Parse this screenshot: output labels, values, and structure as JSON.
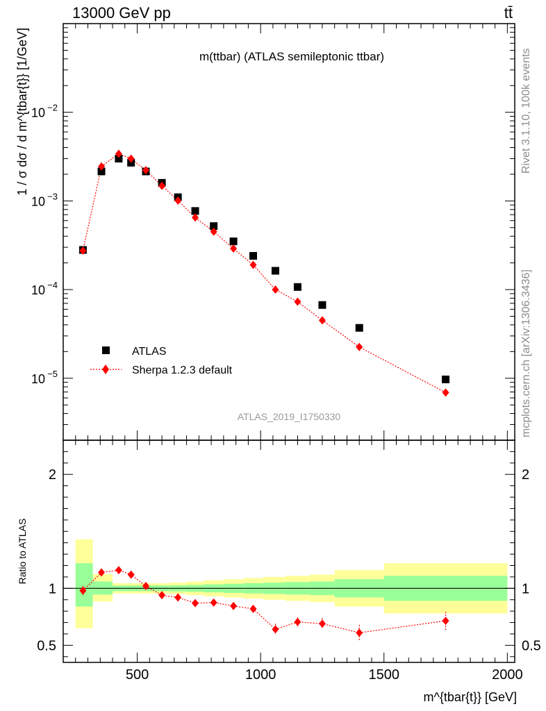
{
  "header": {
    "left": "13000 GeV pp",
    "right": "tt̄"
  },
  "side_labels": {
    "version": "Rivet 3.1.10,  100k events",
    "source": "mcplots.cern.ch [arXiv:1306.3436]"
  },
  "analysis_id": "ATLAS_2019_I1750330",
  "chart_data": [
    {
      "type": "scatter",
      "title": "m(ttbar) (ATLAS semileptonic ttbar)",
      "ylabel": "1 / σ dσ / d m^{tbar{t}} [1/GeV]",
      "yscale": "log",
      "ylim": [
        2e-06,
        0.1
      ],
      "xlim": [
        200,
        2030
      ],
      "x_ticks": [
        500,
        1000,
        1500,
        2000
      ],
      "y_ticks": [
        "10^-5",
        "10^-4",
        "10^-3",
        "10^-2"
      ],
      "legend_position": "bottom-left",
      "series": [
        {
          "name": "ATLAS",
          "color": "#000000",
          "marker": "square",
          "points": [
            {
              "x": 280,
              "y": 0.00028
            },
            {
              "x": 355,
              "y": 0.00215
            },
            {
              "x": 425,
              "y": 0.003
            },
            {
              "x": 475,
              "y": 0.0027
            },
            {
              "x": 535,
              "y": 0.00215
            },
            {
              "x": 600,
              "y": 0.0016
            },
            {
              "x": 665,
              "y": 0.0011
            },
            {
              "x": 735,
              "y": 0.00077
            },
            {
              "x": 810,
              "y": 0.00052
            },
            {
              "x": 890,
              "y": 0.00035
            },
            {
              "x": 970,
              "y": 0.00024
            },
            {
              "x": 1060,
              "y": 0.000163
            },
            {
              "x": 1150,
              "y": 0.000107
            },
            {
              "x": 1250,
              "y": 6.7e-05
            },
            {
              "x": 1400,
              "y": 3.7e-05
            },
            {
              "x": 1750,
              "y": 9.7e-06
            }
          ]
        },
        {
          "name": "Sherpa 1.2.3 default",
          "color": "#ff0000",
          "marker": "diamond",
          "line": "dotted",
          "points": [
            {
              "x": 280,
              "y": 0.000275
            },
            {
              "x": 355,
              "y": 0.00245
            },
            {
              "x": 425,
              "y": 0.0034
            },
            {
              "x": 475,
              "y": 0.003
            },
            {
              "x": 535,
              "y": 0.00222
            },
            {
              "x": 600,
              "y": 0.00148
            },
            {
              "x": 665,
              "y": 0.00101
            },
            {
              "x": 735,
              "y": 0.00065
            },
            {
              "x": 810,
              "y": 0.00045
            },
            {
              "x": 890,
              "y": 0.00029
            },
            {
              "x": 970,
              "y": 0.00019
            },
            {
              "x": 1060,
              "y": 0.0001
            },
            {
              "x": 1150,
              "y": 7.3e-05
            },
            {
              "x": 1250,
              "y": 4.5e-05
            },
            {
              "x": 1400,
              "y": 2.25e-05
            },
            {
              "x": 1750,
              "y": 6.9e-06
            }
          ]
        }
      ]
    },
    {
      "type": "scatter",
      "ylabel": "Ratio to ATLAS",
      "xlabel": "m^{tbar{t}} [GeV]",
      "ylim": [
        0.35,
        2.3
      ],
      "xlim": [
        200,
        2030
      ],
      "x_ticks": [
        500,
        1000,
        1500,
        2000
      ],
      "y_ticks": [
        0.5,
        1,
        2
      ],
      "reference_line": 1,
      "bands": [
        {
          "x0": 250,
          "x1": 320,
          "green": [
            0.84,
            1.22
          ],
          "yellow": [
            0.65,
            1.43
          ]
        },
        {
          "x0": 320,
          "x1": 400,
          "green": [
            0.945,
            1.06
          ],
          "yellow": [
            0.885,
            1.125
          ]
        },
        {
          "x0": 400,
          "x1": 450,
          "green": [
            0.975,
            1.025
          ],
          "yellow": [
            0.955,
            1.045
          ]
        },
        {
          "x0": 450,
          "x1": 500,
          "green": [
            0.975,
            1.025
          ],
          "yellow": [
            0.955,
            1.045
          ]
        },
        {
          "x0": 500,
          "x1": 570,
          "green": [
            0.975,
            1.025
          ],
          "yellow": [
            0.955,
            1.045
          ]
        },
        {
          "x0": 570,
          "x1": 630,
          "green": [
            0.975,
            1.025
          ],
          "yellow": [
            0.955,
            1.045
          ]
        },
        {
          "x0": 630,
          "x1": 700,
          "green": [
            0.973,
            1.027
          ],
          "yellow": [
            0.95,
            1.05
          ]
        },
        {
          "x0": 700,
          "x1": 770,
          "green": [
            0.97,
            1.03
          ],
          "yellow": [
            0.94,
            1.06
          ]
        },
        {
          "x0": 770,
          "x1": 850,
          "green": [
            0.965,
            1.035
          ],
          "yellow": [
            0.93,
            1.07
          ]
        },
        {
          "x0": 850,
          "x1": 930,
          "green": [
            0.96,
            1.04
          ],
          "yellow": [
            0.92,
            1.08
          ]
        },
        {
          "x0": 930,
          "x1": 1010,
          "green": [
            0.955,
            1.045
          ],
          "yellow": [
            0.91,
            1.09
          ]
        },
        {
          "x0": 1010,
          "x1": 1100,
          "green": [
            0.95,
            1.05
          ],
          "yellow": [
            0.9,
            1.1
          ]
        },
        {
          "x0": 1100,
          "x1": 1200,
          "green": [
            0.945,
            1.055
          ],
          "yellow": [
            0.89,
            1.11
          ]
        },
        {
          "x0": 1200,
          "x1": 1300,
          "green": [
            0.94,
            1.06
          ],
          "yellow": [
            0.88,
            1.12
          ]
        },
        {
          "x0": 1300,
          "x1": 1500,
          "green": [
            0.92,
            1.08
          ],
          "yellow": [
            0.84,
            1.16
          ]
        },
        {
          "x0": 1500,
          "x1": 2000,
          "green": [
            0.89,
            1.11
          ],
          "yellow": [
            0.78,
            1.22
          ]
        }
      ],
      "series": [
        {
          "name": "Sherpa 1.2.3 default",
          "color": "#ff0000",
          "marker": "diamond",
          "line": "dotted",
          "points": [
            {
              "x": 280,
              "y": 0.98,
              "err": 0.04
            },
            {
              "x": 355,
              "y": 1.14,
              "err": 0.02
            },
            {
              "x": 425,
              "y": 1.16,
              "err": 0.02
            },
            {
              "x": 475,
              "y": 1.12,
              "err": 0.02
            },
            {
              "x": 535,
              "y": 1.02,
              "err": 0.02
            },
            {
              "x": 600,
              "y": 0.94,
              "err": 0.02
            },
            {
              "x": 665,
              "y": 0.92,
              "err": 0.02
            },
            {
              "x": 735,
              "y": 0.87,
              "err": 0.02
            },
            {
              "x": 810,
              "y": 0.875,
              "err": 0.03
            },
            {
              "x": 890,
              "y": 0.845,
              "err": 0.03
            },
            {
              "x": 970,
              "y": 0.82,
              "err": 0.03
            },
            {
              "x": 1060,
              "y": 0.64,
              "err": 0.05
            },
            {
              "x": 1150,
              "y": 0.705,
              "err": 0.04
            },
            {
              "x": 1250,
              "y": 0.69,
              "err": 0.05
            },
            {
              "x": 1400,
              "y": 0.61,
              "err": 0.07
            },
            {
              "x": 1750,
              "y": 0.715,
              "err": 0.08
            }
          ]
        }
      ]
    }
  ]
}
